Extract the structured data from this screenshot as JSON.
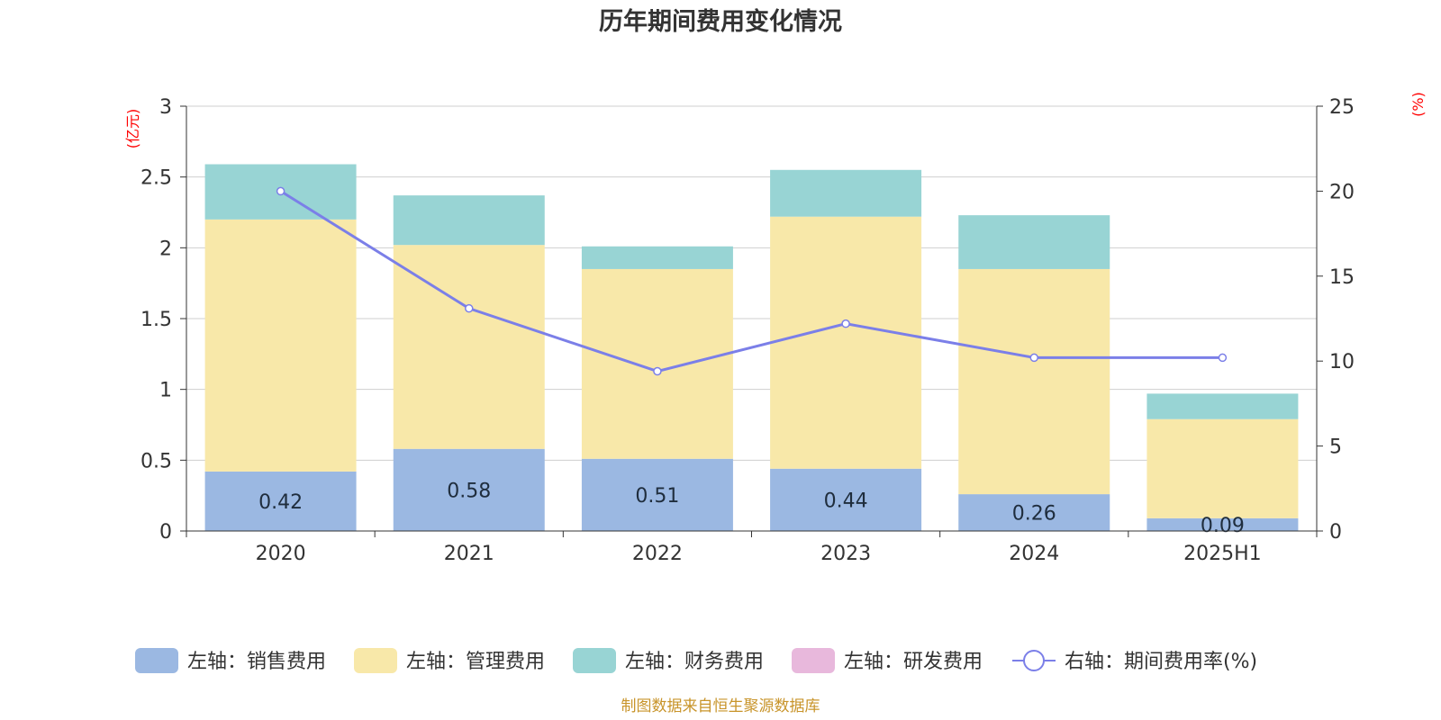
{
  "chart_data": {
    "type": "bar",
    "stacked": true,
    "title": "历年期间费用变化情况",
    "categories": [
      "2020",
      "2021",
      "2022",
      "2023",
      "2024",
      "2025H1"
    ],
    "left_axis": {
      "unit": "(亿元)",
      "ylim": [
        0,
        3
      ],
      "ticks": [
        "0",
        "0.5",
        "1",
        "1.5",
        "2",
        "2.5",
        "3"
      ]
    },
    "right_axis": {
      "unit": "(%)",
      "ylim": [
        0,
        25
      ],
      "ticks": [
        "0",
        "5",
        "10",
        "15",
        "20",
        "25"
      ]
    },
    "series": [
      {
        "name": "左轴：销售费用",
        "axis": "left",
        "type": "bar",
        "color": "#9bb8e2",
        "values": [
          0.42,
          0.58,
          0.51,
          0.44,
          0.26,
          0.09
        ],
        "labels": [
          "0.42",
          "0.58",
          "0.51",
          "0.44",
          "0.26",
          "0.09"
        ]
      },
      {
        "name": "左轴：管理费用",
        "axis": "left",
        "type": "bar",
        "color": "#f8e8a9",
        "values": [
          1.78,
          1.44,
          1.34,
          1.78,
          1.59,
          0.7
        ]
      },
      {
        "name": "左轴：财务费用",
        "axis": "left",
        "type": "bar",
        "color": "#98d4d4",
        "values": [
          0.39,
          0.35,
          0.16,
          0.33,
          0.38,
          0.18
        ]
      },
      {
        "name": "左轴：研发费用",
        "axis": "left",
        "type": "bar",
        "color": "#e8b8dc",
        "values": [
          0,
          0,
          0,
          0,
          0,
          0
        ]
      },
      {
        "name": "右轴：期间费用率(%)",
        "axis": "right",
        "type": "line",
        "color": "#7b7fe8",
        "values": [
          20.0,
          13.1,
          9.4,
          12.2,
          10.2,
          10.2
        ]
      }
    ],
    "source": "制图数据来自恒生聚源数据库"
  }
}
